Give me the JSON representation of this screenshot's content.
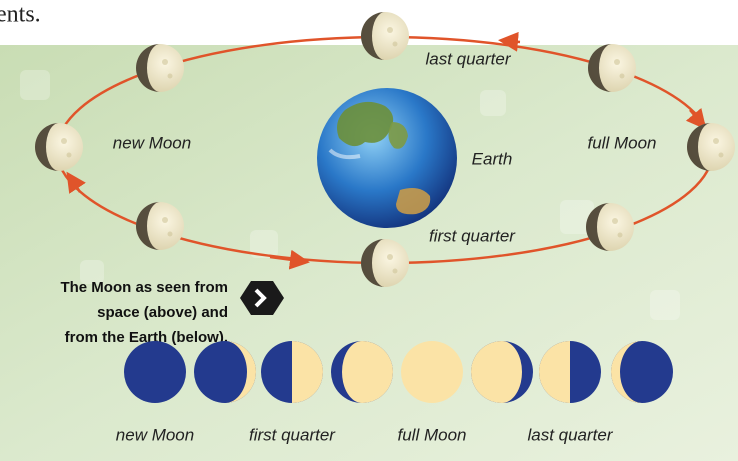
{
  "fragment": "ents.",
  "orbit_labels": {
    "last_quarter": "last quarter",
    "new_moon": "new Moon",
    "earth": "Earth",
    "full_moon": "full Moon",
    "first_quarter": "first quarter"
  },
  "caption_lines": [
    "The Moon as seen from",
    "space (above) and",
    "from the Earth (below)."
  ],
  "phase_labels": [
    "new Moon",
    "first quarter",
    "full Moon",
    "last quarter"
  ]
}
